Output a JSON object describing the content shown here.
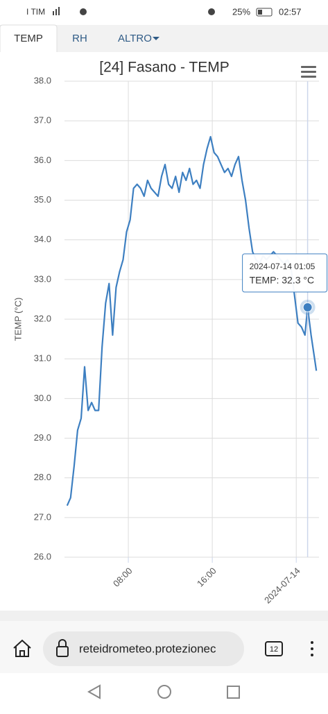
{
  "status_bar": {
    "carrier": "I TIM",
    "battery": "25%",
    "time": "02:57"
  },
  "tabs": [
    "TEMP",
    "RH",
    "ALTRO"
  ],
  "chart_data": {
    "type": "line",
    "title": "[24] Fasano - TEMP",
    "y_label": "TEMP (°C)",
    "color": "#3d7fc1",
    "grid": true,
    "x": [
      "2024-07-13 02:10",
      "2024-07-13 02:30",
      "2024-07-13 02:50",
      "2024-07-13 03:10",
      "2024-07-13 03:30",
      "2024-07-13 03:50",
      "2024-07-13 04:10",
      "2024-07-13 04:30",
      "2024-07-13 04:50",
      "2024-07-13 05:10",
      "2024-07-13 05:30",
      "2024-07-13 05:50",
      "2024-07-13 06:10",
      "2024-07-13 06:30",
      "2024-07-13 06:50",
      "2024-07-13 07:10",
      "2024-07-13 07:30",
      "2024-07-13 07:50",
      "2024-07-13 08:10",
      "2024-07-13 08:30",
      "2024-07-13 08:50",
      "2024-07-13 09:10",
      "2024-07-13 09:30",
      "2024-07-13 09:50",
      "2024-07-13 10:10",
      "2024-07-13 10:30",
      "2024-07-13 10:50",
      "2024-07-13 11:10",
      "2024-07-13 11:30",
      "2024-07-13 11:50",
      "2024-07-13 12:10",
      "2024-07-13 12:30",
      "2024-07-13 12:50",
      "2024-07-13 13:10",
      "2024-07-13 13:30",
      "2024-07-13 13:50",
      "2024-07-13 14:10",
      "2024-07-13 14:30",
      "2024-07-13 14:50",
      "2024-07-13 15:10",
      "2024-07-13 15:30",
      "2024-07-13 15:50",
      "2024-07-13 16:10",
      "2024-07-13 16:30",
      "2024-07-13 16:50",
      "2024-07-13 17:10",
      "2024-07-13 17:30",
      "2024-07-13 17:50",
      "2024-07-13 18:10",
      "2024-07-13 18:30",
      "2024-07-13 18:50",
      "2024-07-13 19:10",
      "2024-07-13 19:30",
      "2024-07-13 19:50",
      "2024-07-13 20:10",
      "2024-07-13 20:30",
      "2024-07-13 20:50",
      "2024-07-13 21:10",
      "2024-07-13 21:30",
      "2024-07-13 21:50",
      "2024-07-13 22:10",
      "2024-07-13 22:30",
      "2024-07-13 22:50",
      "2024-07-13 23:10",
      "2024-07-13 23:30",
      "2024-07-13 23:50",
      "2024-07-14 00:10",
      "2024-07-14 00:30",
      "2024-07-14 00:50",
      "2024-07-14 01:05",
      "2024-07-14 01:25",
      "2024-07-14 01:45",
      "2024-07-14 01:55"
    ],
    "values": [
      27.3,
      27.5,
      28.3,
      29.2,
      29.5,
      30.8,
      29.7,
      29.9,
      29.7,
      29.7,
      31.3,
      32.4,
      32.9,
      31.6,
      32.8,
      33.2,
      33.5,
      34.2,
      34.5,
      35.3,
      35.4,
      35.3,
      35.1,
      35.5,
      35.3,
      35.2,
      35.1,
      35.6,
      35.9,
      35.4,
      35.3,
      35.6,
      35.2,
      35.7,
      35.5,
      35.8,
      35.4,
      35.5,
      35.3,
      35.9,
      36.3,
      36.6,
      36.2,
      36.1,
      35.9,
      35.7,
      35.8,
      35.6,
      35.9,
      36.1,
      35.5,
      35.0,
      34.3,
      33.7,
      33.5,
      33.4,
      33.6,
      33.5,
      33.6,
      33.7,
      33.6,
      33.5,
      33.4,
      33.5,
      33.3,
      32.6,
      31.9,
      31.8,
      31.6,
      32.3,
      31.6,
      31.0,
      30.7
    ],
    "xlim": [
      "2024-07-13 01:55",
      "2024-07-14 02:10"
    ],
    "xticks": [
      {
        "value": "2024-07-13 08:00",
        "label": "08:00"
      },
      {
        "value": "2024-07-13 16:00",
        "label": "16:00"
      },
      {
        "value": "2024-07-14 00:00",
        "label": "2024-07-14"
      }
    ],
    "ylim": [
      26,
      38
    ],
    "yticks": [
      {
        "value": 26,
        "label": "26.0"
      },
      {
        "value": 27,
        "label": "27.0"
      },
      {
        "value": 28,
        "label": "28.0"
      },
      {
        "value": 29,
        "label": "29.0"
      },
      {
        "value": 30,
        "label": "30.0"
      },
      {
        "value": 31,
        "label": "31.0"
      },
      {
        "value": 32,
        "label": "32.0"
      },
      {
        "value": 33,
        "label": "33.0"
      },
      {
        "value": 34,
        "label": "34.0"
      },
      {
        "value": 35,
        "label": "35.0"
      },
      {
        "value": 36,
        "label": "36.0"
      },
      {
        "value": 37,
        "label": "37.0"
      },
      {
        "value": 38,
        "label": "38.0"
      }
    ],
    "tooltip": {
      "title": "2024-07-14 01:05",
      "text": "TEMP: 32.3 °C"
    }
  },
  "browser": {
    "url": "reteidrometeo.protezionec",
    "tab_count": 12
  }
}
